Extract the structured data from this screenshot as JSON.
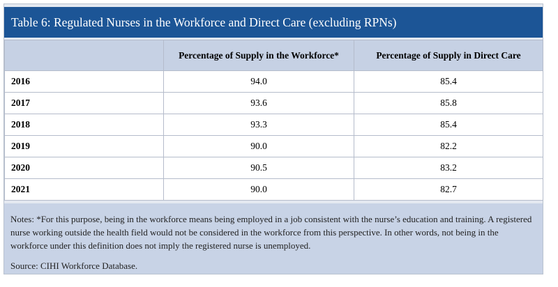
{
  "title": "Table 6: Regulated Nurses in the Workforce and Direct Care (excluding RPNs)",
  "table": {
    "header": [
      "Percentage of Supply in the Workforce*",
      "Percentage of Supply in Direct Care"
    ],
    "rows": [
      [
        "2016",
        "94.0",
        "85.4"
      ],
      [
        "2017",
        "93.6",
        "85.8"
      ],
      [
        "2018",
        "93.3",
        "85.4"
      ],
      [
        "2019",
        "90.0",
        "82.2"
      ],
      [
        "2020",
        "90.5",
        "83.2"
      ],
      [
        "2021",
        "90.0",
        "82.7"
      ]
    ]
  },
  "notes": {
    "text": "Notes: *For this purpose, being in the workforce means being employed in a job consistent with the nurse’s education and training. A registered nurse working outside the health field would not be considered in the workforce from this perspective. In other words, not being in the workforce under this definition does not imply the registered nurse is unemployed.",
    "source": "Source: CIHI Workforce Database."
  }
}
